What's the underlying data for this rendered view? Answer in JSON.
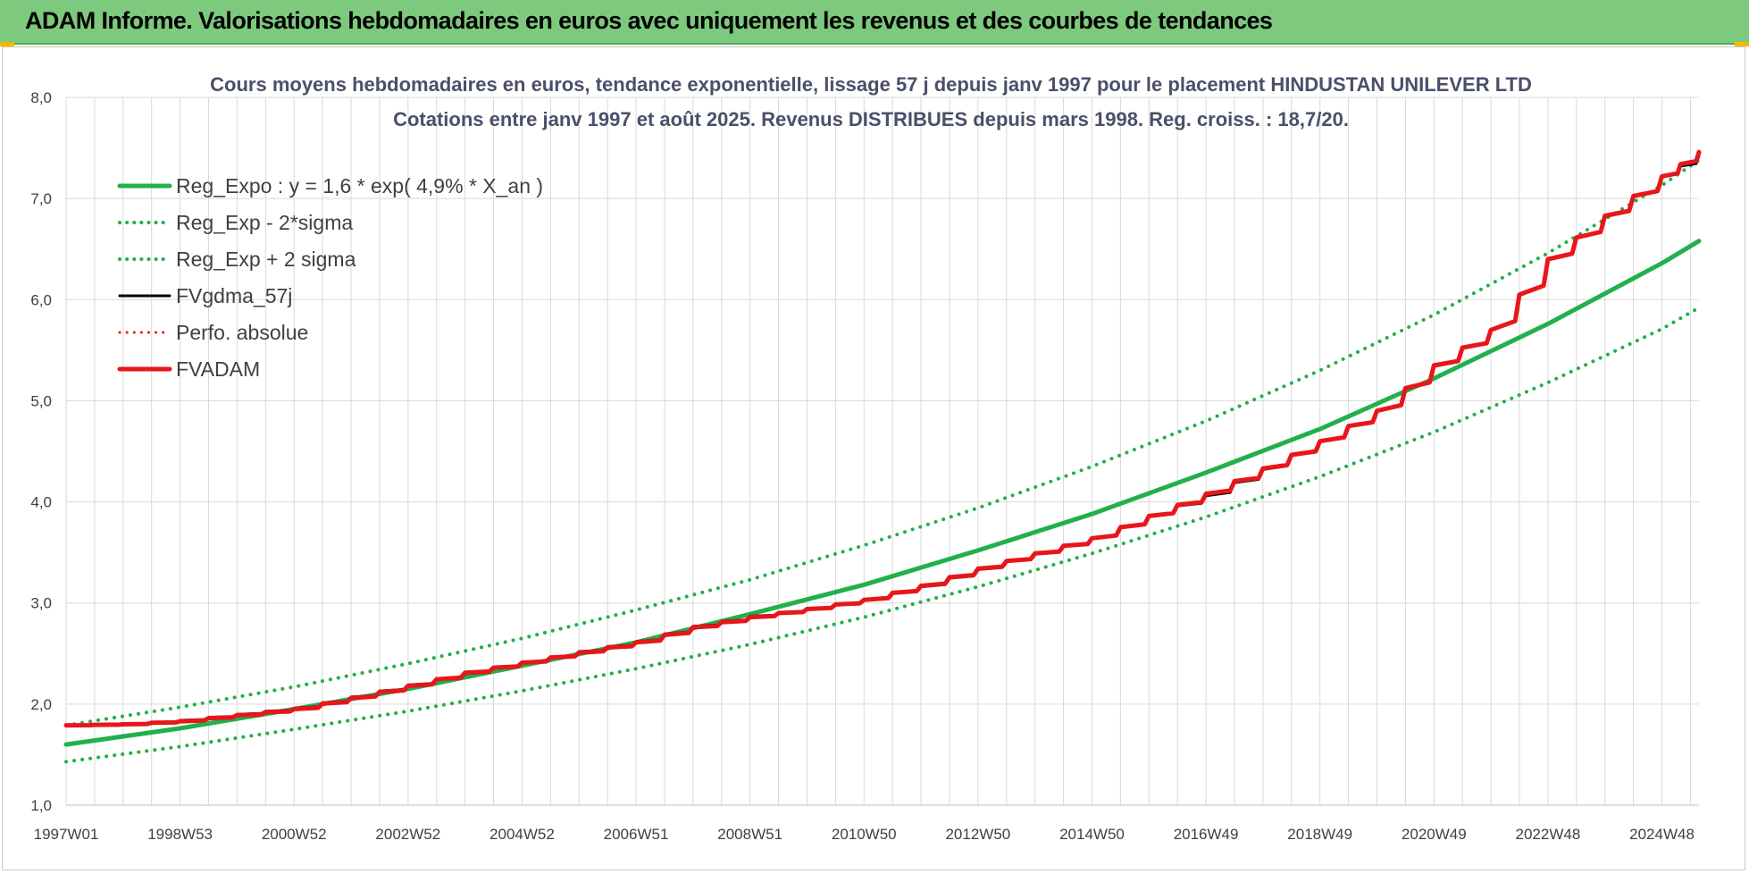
{
  "banner": {
    "title": "ADAM Informe. Valorisations hebdomadaires en euros avec uniquement les revenus et des courbes de tendances"
  },
  "colors": {
    "banner_bg": "#7dc97d",
    "trend_green": "#21b04b",
    "gdma_black": "#000000",
    "adam_red": "#e8161b",
    "grid": "#d9d9d9"
  },
  "chart_data": {
    "type": "line",
    "title": "Cours moyens hebdomadaires en euros, tendance exponentielle, lissage 57 j depuis janv 1997 pour le placement HINDUSTAN UNILEVER LTD",
    "subtitle": "Cotations entre janv 1997 et août 2025. Revenus DISTRIBUES depuis mars 1998. Reg. croiss. : 18,7/20.",
    "xlabel": "",
    "ylabel": "",
    "ylim": [
      1.0,
      8.0
    ],
    "yticks": [
      "1,0",
      "2,0",
      "3,0",
      "4,0",
      "5,0",
      "6,0",
      "7,0",
      "8,0"
    ],
    "xlim": [
      1997.0,
      2025.65
    ],
    "xticks": [
      {
        "label": "1997W01",
        "x": 1997.0
      },
      {
        "label": "1998W53",
        "x": 1999.0
      },
      {
        "label": "2000W52",
        "x": 2001.0
      },
      {
        "label": "2002W52",
        "x": 2003.0
      },
      {
        "label": "2004W52",
        "x": 2005.0
      },
      {
        "label": "2006W51",
        "x": 2007.0
      },
      {
        "label": "2008W51",
        "x": 2009.0
      },
      {
        "label": "2010W50",
        "x": 2011.0
      },
      {
        "label": "2012W50",
        "x": 2013.0
      },
      {
        "label": "2014W50",
        "x": 2015.0
      },
      {
        "label": "2016W49",
        "x": 2017.0
      },
      {
        "label": "2018W49",
        "x": 2019.0
      },
      {
        "label": "2020W49",
        "x": 2021.0
      },
      {
        "label": "2022W48",
        "x": 2023.0
      },
      {
        "label": "2024W48",
        "x": 2025.0
      }
    ],
    "grid": true,
    "legend_position": "top-left",
    "legend": [
      {
        "name": "Reg_Expo : y = 1,6 * exp( 4,9% *  X_an )",
        "color": "#21b04b",
        "style": "solid",
        "width": 5
      },
      {
        "name": "Reg_Exp - 2*sigma",
        "color": "#21b04b",
        "style": "dotted",
        "width": 4
      },
      {
        "name": "Reg_Exp + 2 sigma",
        "color": "#21b04b",
        "style": "dotted",
        "width": 4
      },
      {
        "name": "FVgdma_57j",
        "color": "#000000",
        "style": "solid",
        "width": 3
      },
      {
        "name": "Perfo. absolue",
        "color": "#e8161b",
        "style": "dotted",
        "width": 3
      },
      {
        "name": "FVADAM",
        "color": "#e8161b",
        "style": "solid",
        "width": 5
      }
    ],
    "series": [
      {
        "name": "Reg_Expo : y = 1,6 * exp( 4,9% *  X_an )",
        "x": [
          1997.0,
          1999.0,
          2001.0,
          2003.0,
          2005.0,
          2007.0,
          2009.0,
          2011.0,
          2013.0,
          2015.0,
          2017.0,
          2019.0,
          2021.0,
          2023.0,
          2025.0,
          2025.65
        ],
        "values": [
          1.6,
          1.76,
          1.95,
          2.15,
          2.38,
          2.61,
          2.89,
          3.18,
          3.52,
          3.88,
          4.29,
          4.72,
          5.22,
          5.76,
          6.36,
          6.58
        ]
      },
      {
        "name": "Reg_Exp - 2*sigma",
        "x": [
          1997.0,
          1999.0,
          2001.0,
          2003.0,
          2005.0,
          2007.0,
          2009.0,
          2011.0,
          2013.0,
          2015.0,
          2017.0,
          2019.0,
          2021.0,
          2023.0,
          2025.0,
          2025.65
        ],
        "values": [
          1.43,
          1.58,
          1.75,
          1.93,
          2.13,
          2.35,
          2.59,
          2.86,
          3.16,
          3.49,
          3.85,
          4.25,
          4.69,
          5.18,
          5.71,
          5.92
        ]
      },
      {
        "name": "Reg_Exp + 2 sigma",
        "x": [
          1997.0,
          1999.0,
          2001.0,
          2003.0,
          2005.0,
          2007.0,
          2009.0,
          2011.0,
          2013.0,
          2015.0,
          2017.0,
          2019.0,
          2021.0,
          2023.0,
          2025.0,
          2025.65
        ],
        "values": [
          1.79,
          1.97,
          2.17,
          2.4,
          2.65,
          2.93,
          3.23,
          3.57,
          3.94,
          4.35,
          4.8,
          5.3,
          5.85,
          6.46,
          7.13,
          7.38
        ]
      },
      {
        "name": "FVgdma_57j",
        "x": [
          1997.0,
          1998.0,
          1999.0,
          2000.0,
          2001.0,
          2002.0,
          2003.0,
          2004.0,
          2005.0,
          2006.0,
          2007.0,
          2008.0,
          2009.0,
          2010.0,
          2011.0,
          2012.0,
          2013.0,
          2014.0,
          2015.0,
          2016.0,
          2017.0,
          2018.0,
          2019.0,
          2020.0,
          2021.0,
          2022.0,
          2023.0,
          2024.0,
          2025.0,
          2025.65
        ],
        "values": [
          1.79,
          1.8,
          1.84,
          1.9,
          1.96,
          2.07,
          2.19,
          2.3,
          2.41,
          2.52,
          2.62,
          2.77,
          2.87,
          2.94,
          3.03,
          3.16,
          3.33,
          3.49,
          3.64,
          3.86,
          4.06,
          4.32,
          4.6,
          4.9,
          5.34,
          5.7,
          6.4,
          6.82,
          7.22,
          7.42
        ]
      },
      {
        "name": "FVADAM",
        "x": [
          1997.0,
          1998.0,
          1999.0,
          2000.0,
          2001.0,
          2002.0,
          2003.0,
          2004.0,
          2005.0,
          2006.0,
          2007.0,
          2008.0,
          2009.0,
          2010.0,
          2011.0,
          2012.0,
          2013.0,
          2014.0,
          2015.0,
          2016.0,
          2017.0,
          2018.0,
          2019.0,
          2020.0,
          2021.0,
          2022.0,
          2023.0,
          2024.0,
          2025.0,
          2025.65
        ],
        "values": [
          1.79,
          1.8,
          1.83,
          1.89,
          1.95,
          2.06,
          2.18,
          2.31,
          2.41,
          2.51,
          2.61,
          2.76,
          2.86,
          2.94,
          3.03,
          3.17,
          3.34,
          3.49,
          3.64,
          3.86,
          4.08,
          4.33,
          4.6,
          4.9,
          5.35,
          5.7,
          6.4,
          6.83,
          7.22,
          7.46
        ]
      }
    ]
  }
}
